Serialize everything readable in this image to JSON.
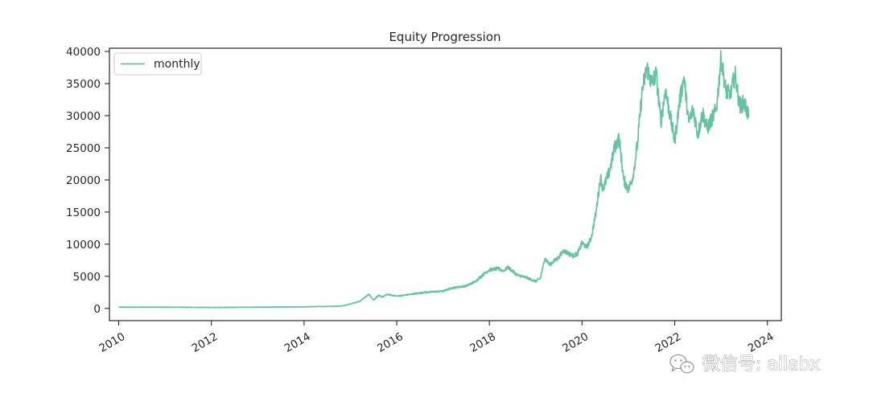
{
  "chart_data": {
    "type": "line",
    "title": "Equity Progression",
    "xlabel": "",
    "ylabel": "",
    "xlim": [
      2009.8,
      2024.3
    ],
    "ylim": [
      -1900,
      40500
    ],
    "x_ticks": [
      2010,
      2012,
      2014,
      2016,
      2018,
      2020,
      2022,
      2024
    ],
    "x_tick_labels": [
      "2010",
      "2012",
      "2014",
      "2016",
      "2018",
      "2020",
      "2022",
      "2024"
    ],
    "y_ticks": [
      0,
      5000,
      10000,
      15000,
      20000,
      25000,
      30000,
      35000,
      40000
    ],
    "y_tick_labels": [
      "0",
      "5000",
      "10000",
      "15000",
      "20000",
      "25000",
      "30000",
      "35000",
      "40000"
    ],
    "grid": false,
    "legend_position": "upper-left",
    "series": [
      {
        "name": "monthly",
        "color": "#66c2a5",
        "x": [
          2010.0,
          2011.0,
          2012.0,
          2013.0,
          2014.0,
          2014.8,
          2015.0,
          2015.2,
          2015.4,
          2015.5,
          2015.6,
          2015.7,
          2015.8,
          2016.0,
          2016.2,
          2016.4,
          2016.6,
          2016.8,
          2017.0,
          2017.2,
          2017.5,
          2017.7,
          2017.9,
          2018.0,
          2018.2,
          2018.3,
          2018.4,
          2018.6,
          2018.8,
          2019.0,
          2019.1,
          2019.2,
          2019.3,
          2019.5,
          2019.6,
          2019.8,
          2019.9,
          2020.0,
          2020.1,
          2020.2,
          2020.3,
          2020.4,
          2020.45,
          2020.5,
          2020.6,
          2020.7,
          2020.8,
          2020.9,
          2021.0,
          2021.1,
          2021.2,
          2021.3,
          2021.4,
          2021.5,
          2021.6,
          2021.7,
          2021.8,
          2021.9,
          2022.0,
          2022.1,
          2022.2,
          2022.3,
          2022.4,
          2022.5,
          2022.6,
          2022.7,
          2022.8,
          2022.9,
          2023.0,
          2023.1,
          2023.2,
          2023.3,
          2023.4,
          2023.5,
          2023.6
        ],
        "values": [
          200,
          200,
          150,
          200,
          250,
          350,
          700,
          1100,
          2200,
          1300,
          2000,
          1800,
          2200,
          1900,
          2100,
          2300,
          2500,
          2600,
          2700,
          3200,
          3500,
          4200,
          5500,
          6000,
          6200,
          5800,
          6400,
          5200,
          4800,
          4200,
          4700,
          7800,
          6800,
          8000,
          9000,
          8200,
          8500,
          10200,
          9500,
          11000,
          15000,
          20500,
          18500,
          19500,
          21500,
          25000,
          26500,
          20000,
          18500,
          20500,
          26000,
          34000,
          37500,
          35000,
          36500,
          29000,
          34000,
          30000,
          26000,
          32000,
          36000,
          29000,
          31000,
          27000,
          30500,
          28000,
          29500,
          31000,
          39000,
          34000,
          33000,
          36500,
          31500,
          32000,
          30000
        ]
      }
    ]
  },
  "watermark": {
    "text": "微信号: ailabx",
    "icon": "wechat-icon"
  }
}
